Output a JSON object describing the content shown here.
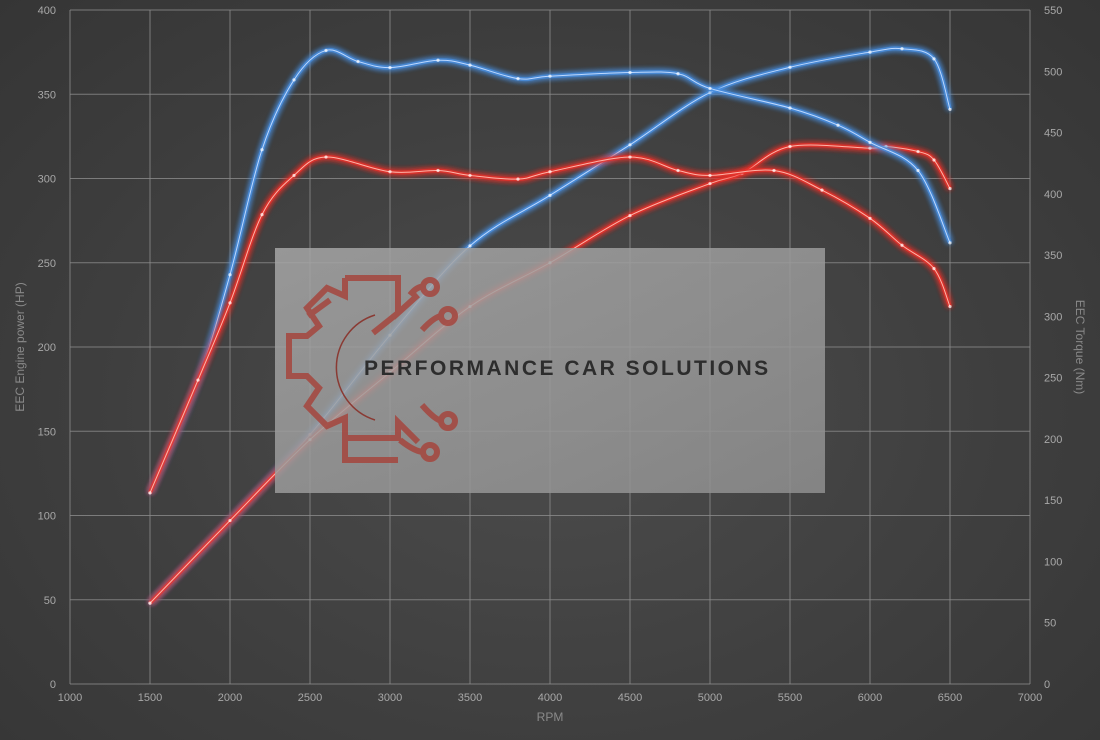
{
  "chart_data": {
    "type": "line",
    "title": "",
    "xlabel": "RPM",
    "ylabel_left": "EEC Engine power (HP)",
    "ylabel_right": "EEC Torque (Nm)",
    "xlim": [
      1000,
      7000
    ],
    "ylim_left": [
      0,
      400
    ],
    "ylim_right": [
      0,
      550
    ],
    "x_ticks": [
      1000,
      1500,
      2000,
      2500,
      3000,
      3500,
      4000,
      4500,
      5000,
      5500,
      6000,
      6500,
      7000
    ],
    "y_ticks_left": [
      0,
      50,
      100,
      150,
      200,
      250,
      300,
      350,
      400
    ],
    "y_ticks_right": [
      0,
      50,
      100,
      150,
      200,
      250,
      300,
      350,
      400,
      450,
      500,
      550
    ],
    "grid": true,
    "legend": "none",
    "watermark": "PERFORMANCE CAR SOLUTIONS",
    "colors": {
      "blue": "#4a90e2",
      "red": "#e8322b"
    },
    "series": [
      {
        "name": "Power (blue)",
        "axis": "left",
        "color": "blue",
        "x": [
          1500,
          2000,
          2500,
          3000,
          3500,
          4000,
          4500,
          5000,
          5500,
          6000,
          6200,
          6400,
          6500
        ],
        "y": [
          48,
          97,
          148,
          207,
          260,
          290,
          320,
          351,
          366,
          375,
          377,
          371,
          341
        ]
      },
      {
        "name": "Power (red)",
        "axis": "left",
        "color": "red",
        "x": [
          1500,
          2000,
          2500,
          3000,
          3500,
          4000,
          4500,
          5000,
          5200,
          5500,
          6000,
          6100,
          6300,
          6400,
          6500
        ],
        "y": [
          48,
          97,
          145,
          185,
          224,
          250,
          278,
          297,
          303,
          319,
          318,
          319,
          316,
          311,
          294
        ]
      },
      {
        "name": "Torque (blue)",
        "axis": "right",
        "color": "blue",
        "x": [
          1500,
          1800,
          2000,
          2200,
          2400,
          2600,
          2800,
          3000,
          3300,
          3500,
          3800,
          4000,
          4500,
          4800,
          5000,
          5500,
          5800,
          6000,
          6300,
          6500
        ],
        "y": [
          156,
          248,
          334,
          436,
          493,
          517,
          508,
          503,
          509,
          505,
          494,
          496,
          499,
          498,
          486,
          470,
          456,
          442,
          419,
          360
        ]
      },
      {
        "name": "Torque (red)",
        "axis": "right",
        "color": "red",
        "x": [
          1500,
          1800,
          2000,
          2200,
          2400,
          2600,
          3000,
          3300,
          3500,
          3800,
          4000,
          4500,
          4800,
          5000,
          5400,
          5700,
          6000,
          6200,
          6400,
          6500
        ],
        "y": [
          156,
          248,
          311,
          383,
          415,
          430,
          418,
          419,
          415,
          412,
          418,
          430,
          419,
          415,
          419,
          403,
          380,
          358,
          339,
          308
        ]
      }
    ]
  }
}
